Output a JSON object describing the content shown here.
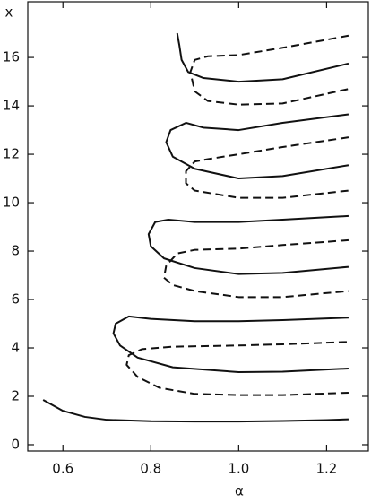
{
  "chart_data": {
    "type": "line",
    "x_label": "α",
    "y_label": "x",
    "xlim": [
      0.52,
      1.295
    ],
    "ylim": [
      -0.26,
      18.3
    ],
    "xticks": [
      {
        "value": 0.6,
        "label": "0.6"
      },
      {
        "value": 0.8,
        "label": "0.8"
      },
      {
        "value": 1.0,
        "label": "1.0"
      },
      {
        "value": 1.2,
        "label": "1.2"
      }
    ],
    "yticks": [
      0,
      2,
      4,
      6,
      8,
      10,
      12,
      14,
      16
    ],
    "series": [
      {
        "color": "#111111",
        "dashed": false,
        "x": [
          0.555,
          0.6,
          0.65,
          0.7,
          0.8,
          0.9,
          1.0,
          1.1,
          1.2,
          1.25
        ],
        "values": [
          1.85,
          1.4,
          1.15,
          1.03,
          0.97,
          0.96,
          0.96,
          0.98,
          1.02,
          1.05
        ]
      },
      {
        "color": "#111111",
        "dashed": true,
        "x": [
          1.25,
          1.1,
          1.0,
          0.9,
          0.82,
          0.77,
          0.745,
          0.75,
          0.78,
          0.85,
          1.0,
          1.1,
          1.25
        ],
        "values": [
          2.15,
          2.05,
          2.05,
          2.1,
          2.35,
          2.8,
          3.3,
          3.7,
          3.95,
          4.05,
          4.1,
          4.15,
          4.25
        ]
      },
      {
        "color": "#111111",
        "dashed": false,
        "x": [
          1.25,
          1.1,
          1.0,
          0.9,
          0.8,
          0.75,
          0.72,
          0.715,
          0.73,
          0.77,
          0.85,
          1.0,
          1.1,
          1.25
        ],
        "values": [
          5.25,
          5.15,
          5.1,
          5.1,
          5.2,
          5.3,
          5.0,
          4.6,
          4.1,
          3.6,
          3.2,
          3.0,
          3.02,
          3.15
        ]
      },
      {
        "color": "#111111",
        "dashed": true,
        "x": [
          1.25,
          1.1,
          1.0,
          0.9,
          0.86,
          0.835,
          0.83,
          0.85,
          0.9,
          1.0,
          1.1,
          1.25
        ],
        "values": [
          8.45,
          8.25,
          8.1,
          8.05,
          7.9,
          7.4,
          6.9,
          6.6,
          6.35,
          6.1,
          6.1,
          6.35
        ]
      },
      {
        "color": "#111111",
        "dashed": false,
        "x": [
          1.25,
          1.1,
          1.0,
          0.9,
          0.84,
          0.81,
          0.795,
          0.8,
          0.83,
          0.9,
          1.0,
          1.1,
          1.25
        ],
        "values": [
          9.45,
          9.3,
          9.2,
          9.2,
          9.3,
          9.2,
          8.7,
          8.2,
          7.7,
          7.3,
          7.05,
          7.1,
          7.35
        ]
      },
      {
        "color": "#111111",
        "dashed": true,
        "x": [
          1.25,
          1.1,
          1.0,
          0.93,
          0.9,
          0.88,
          0.88,
          0.9,
          1.0,
          1.1,
          1.25
        ],
        "values": [
          12.7,
          12.3,
          12.0,
          11.8,
          11.7,
          11.3,
          10.8,
          10.5,
          10.2,
          10.2,
          10.5
        ]
      },
      {
        "color": "#111111",
        "dashed": false,
        "x": [
          1.25,
          1.1,
          1.0,
          0.92,
          0.88,
          0.845,
          0.835,
          0.85,
          0.9,
          1.0,
          1.1,
          1.25
        ],
        "values": [
          13.65,
          13.3,
          13.0,
          13.1,
          13.3,
          13.0,
          12.5,
          11.9,
          11.4,
          11.0,
          11.1,
          11.55
        ]
      },
      {
        "color": "#111111",
        "dashed": true,
        "x": [
          1.25,
          1.1,
          1.0,
          0.93,
          0.9,
          0.89,
          0.9,
          0.93,
          1.0,
          1.1,
          1.25
        ],
        "values": [
          16.9,
          16.4,
          16.1,
          16.05,
          15.9,
          15.4,
          14.6,
          14.2,
          14.05,
          14.1,
          14.7
        ]
      },
      {
        "color": "#111111",
        "dashed": false,
        "x": [
          0.86,
          0.865,
          0.87,
          0.885,
          0.92,
          1.0,
          1.1,
          1.25
        ],
        "values": [
          17.0,
          16.5,
          15.9,
          15.4,
          15.15,
          15.0,
          15.1,
          15.75
        ]
      }
    ]
  }
}
